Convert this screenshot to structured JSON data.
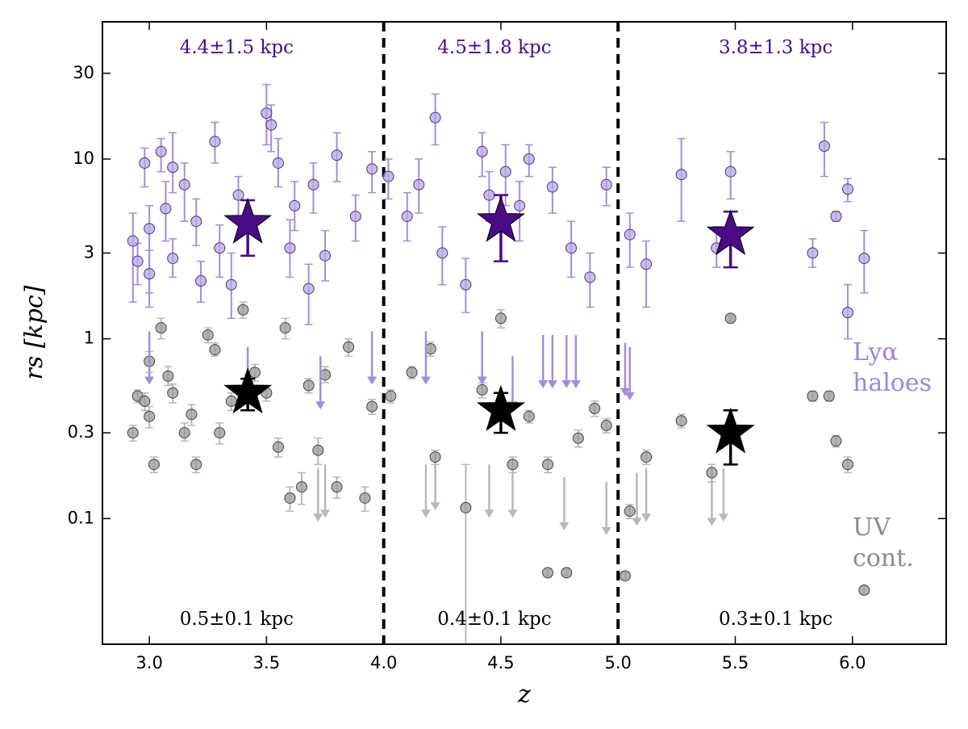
{
  "chart_data": {
    "type": "scatter",
    "xlabel": "z",
    "ylabel": "rs [kpc]",
    "xlim": [
      2.8,
      6.4
    ],
    "ylim": [
      0.02,
      58
    ],
    "log_y": true,
    "xticks": [
      {
        "value": 3,
        "label": "3.0"
      },
      {
        "value": 3.5,
        "label": "3.5"
      },
      {
        "value": 4,
        "label": "4.0"
      },
      {
        "value": 4.5,
        "label": "4.5"
      },
      {
        "value": 5,
        "label": "5.0"
      },
      {
        "value": 5.5,
        "label": "5.5"
      },
      {
        "value": 6,
        "label": "6.0"
      }
    ],
    "yticks": [
      0.1,
      0.3,
      1,
      3,
      10,
      30
    ],
    "vlines": [
      4,
      5
    ],
    "series": [
      {
        "name": "Lyα haloes",
        "color": "#b9a5ea",
        "edge": "#4a3a6a",
        "errcolor": "#a68bdc",
        "x": [
          2.93,
          2.95,
          2.98,
          3.0,
          3.0,
          3.05,
          3.07,
          3.1,
          3.1,
          3.15,
          3.2,
          3.22,
          3.28,
          3.3,
          3.35,
          3.38,
          3.5,
          3.52,
          3.55,
          3.6,
          3.62,
          3.68,
          3.7,
          3.75,
          3.8,
          3.88,
          3.95,
          4.02,
          4.1,
          4.15,
          4.22,
          4.25,
          4.35,
          4.42,
          4.45,
          4.52,
          4.58,
          4.62,
          4.72,
          4.8,
          4.88,
          4.95,
          5.05,
          5.12,
          5.27,
          5.42,
          5.48,
          5.83,
          5.88,
          5.93,
          5.98,
          5.98,
          6.05
        ],
        "values": [
          3.5,
          2.7,
          9.5,
          4.1,
          2.3,
          11,
          5.3,
          9,
          2.8,
          7.2,
          4.5,
          2.1,
          12.5,
          3.2,
          2.0,
          6.3,
          18,
          15.5,
          9.5,
          3.2,
          5.5,
          1.9,
          7.2,
          2.9,
          10.5,
          4.8,
          8.8,
          8,
          4.8,
          7.2,
          17,
          3,
          2,
          11,
          6.3,
          8.5,
          5.5,
          10,
          7,
          3.2,
          2.2,
          7.2,
          3.8,
          2.6,
          8.2,
          3.2,
          8.5,
          3,
          11.8,
          4.8,
          6.8,
          1.4,
          2.8
        ],
        "lower": [
          1.6,
          2.0,
          7.0,
          1.8,
          1.5,
          8.5,
          3.5,
          6.5,
          2.2,
          4.5,
          3.3,
          1.6,
          9.5,
          2.2,
          1.3,
          4.5,
          12,
          11,
          7,
          2.2,
          4,
          1.2,
          5,
          2.1,
          7.5,
          3.5,
          6.5,
          6,
          3.5,
          5,
          12,
          2,
          1.4,
          8,
          4.5,
          5.5,
          3.5,
          8,
          5,
          2.2,
          1.5,
          5.5,
          2.5,
          1.5,
          4.5,
          2.5,
          6,
          2.5,
          8,
          4.5,
          5.8,
          1.0,
          1.8
        ],
        "upper": [
          5.0,
          3.4,
          11.5,
          5.5,
          3.1,
          13,
          7.5,
          14,
          3.6,
          9.5,
          6,
          2.7,
          16,
          4.3,
          3,
          8,
          26,
          20,
          13,
          4.6,
          7.5,
          2.6,
          9.5,
          4,
          14,
          6.3,
          11,
          10,
          6.5,
          10,
          23,
          4.2,
          2.8,
          14,
          8.5,
          12,
          7.5,
          12,
          9,
          4.5,
          3,
          9,
          5,
          3.5,
          13,
          4.2,
          11,
          3.6,
          16,
          5.1,
          7.8,
          2.0,
          4
        ],
        "limit_x": [
          3.0,
          3.42,
          3.73,
          3.95,
          4.18,
          4.42,
          4.55,
          4.68,
          4.72,
          4.78,
          4.82,
          5.03,
          5.05
        ],
        "limit_values": [
          1.1,
          0.9,
          0.8,
          1.1,
          1.1,
          1.1,
          0.8,
          1.05,
          1.05,
          1.05,
          1.05,
          0.95,
          0.9
        ],
        "median": {
          "color": "#4b0a86",
          "x": [
            3.42,
            4.5,
            5.48
          ],
          "values": [
            4.4,
            4.5,
            3.8
          ],
          "lower": [
            2.9,
            2.7,
            2.5
          ],
          "upper": [
            5.9,
            6.3,
            5.1
          ]
        },
        "median_labels": [
          "4.4±1.5 kpc",
          "4.5±1.8 kpc",
          "3.8±1.3 kpc"
        ]
      },
      {
        "name": "UV cont.",
        "color": "#9a9a9a",
        "edge": "#444444",
        "errcolor": "#b8b8b8",
        "x": [
          2.93,
          2.95,
          2.98,
          3.0,
          3.0,
          3.02,
          3.05,
          3.08,
          3.1,
          3.15,
          3.18,
          3.2,
          3.25,
          3.28,
          3.3,
          3.35,
          3.4,
          3.45,
          3.5,
          3.55,
          3.58,
          3.6,
          3.65,
          3.68,
          3.72,
          3.75,
          3.8,
          3.85,
          3.92,
          3.95,
          4.03,
          4.12,
          4.2,
          4.22,
          4.35,
          4.42,
          4.5,
          4.55,
          4.62,
          4.7,
          4.7,
          4.78,
          4.83,
          4.9,
          4.95,
          5.03,
          5.05,
          5.12,
          5.27,
          5.4,
          5.48,
          5.83,
          5.9,
          5.93,
          5.98,
          6.05
        ],
        "values": [
          0.3,
          0.48,
          0.45,
          0.75,
          0.37,
          0.2,
          1.15,
          0.62,
          0.5,
          0.3,
          0.38,
          0.2,
          1.05,
          0.87,
          0.3,
          0.45,
          1.45,
          0.65,
          0.5,
          0.25,
          1.15,
          0.13,
          0.15,
          0.55,
          0.24,
          0.63,
          0.15,
          0.9,
          0.13,
          0.42,
          0.48,
          0.65,
          0.88,
          0.22,
          0.115,
          0.52,
          1.3,
          0.2,
          0.37,
          0.2,
          0.05,
          0.05,
          0.28,
          0.41,
          0.33,
          0.048,
          0.11,
          0.22,
          0.35,
          0.18,
          1.3,
          0.48,
          0.48,
          0.27,
          0.2,
          0.04
        ],
        "lower": [
          0.27,
          0.44,
          0.4,
          0.65,
          0.32,
          0.18,
          1.0,
          0.55,
          0.44,
          0.27,
          0.33,
          0.18,
          0.95,
          0.8,
          0.26,
          0.4,
          1.3,
          0.58,
          0.45,
          0.22,
          1.0,
          0.11,
          0.12,
          0.5,
          0.2,
          0.57,
          0.13,
          0.8,
          0.11,
          0.38,
          0.44,
          0.6,
          0.8,
          0.2,
          0.02,
          0.47,
          1.15,
          0.18,
          0.34,
          0.18,
          0.048,
          0.048,
          0.25,
          0.37,
          0.3,
          0.046,
          0.1,
          0.2,
          0.32,
          0.16,
          1.25,
          0.45,
          0.45,
          0.25,
          0.18,
          0.038
        ],
        "upper": [
          0.33,
          0.52,
          0.5,
          0.85,
          0.42,
          0.22,
          1.3,
          0.7,
          0.56,
          0.34,
          0.43,
          0.22,
          1.15,
          0.95,
          0.34,
          0.5,
          1.6,
          0.72,
          0.55,
          0.28,
          1.3,
          0.15,
          0.18,
          0.6,
          0.28,
          0.7,
          0.17,
          1.0,
          0.15,
          0.46,
          0.52,
          0.7,
          0.96,
          0.24,
          0.2,
          0.57,
          1.45,
          0.22,
          0.4,
          0.22,
          0.052,
          0.052,
          0.31,
          0.45,
          0.36,
          0.05,
          0.12,
          0.24,
          0.38,
          0.2,
          1.35,
          0.51,
          0.51,
          0.29,
          0.22,
          0.042
        ],
        "limit_x": [
          3.72,
          3.75,
          4.18,
          4.22,
          4.45,
          4.55,
          4.77,
          4.95,
          5.08,
          5.12,
          5.4,
          5.45
        ],
        "limit_values": [
          0.19,
          0.2,
          0.2,
          0.22,
          0.2,
          0.2,
          0.17,
          0.16,
          0.18,
          0.19,
          0.18,
          0.19
        ],
        "median": {
          "color": "#000000",
          "x": [
            3.42,
            4.5,
            5.48
          ],
          "values": [
            0.5,
            0.4,
            0.3
          ],
          "lower": [
            0.4,
            0.3,
            0.2
          ],
          "upper": [
            0.6,
            0.5,
            0.4
          ]
        },
        "median_labels": [
          "0.5±0.1 kpc",
          "0.4±0.1 kpc",
          "0.3±0.1 kpc"
        ]
      }
    ]
  }
}
